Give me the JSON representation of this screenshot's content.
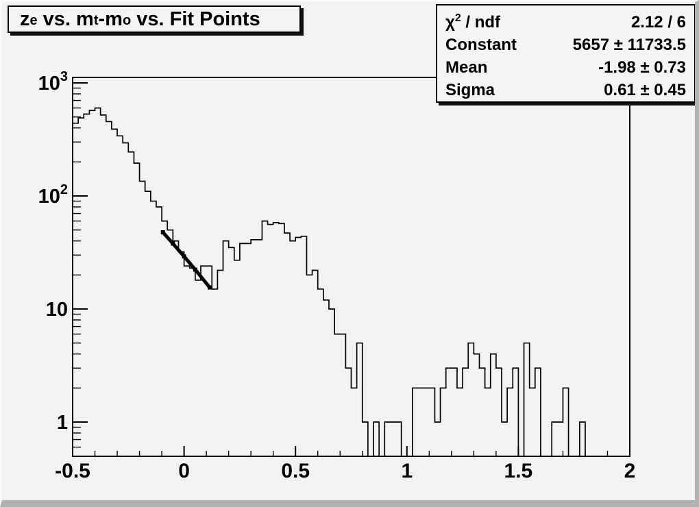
{
  "window": {
    "background": "#f2f2f2",
    "border_light": "#fafafa",
    "border_dark": "#b2b2b2"
  },
  "title_box": {
    "segments": [
      {
        "text": "z",
        "sub": "e"
      },
      {
        "text": " vs. m",
        "sub": "t"
      },
      {
        "text": "-m",
        "sub": "o"
      },
      {
        "text": " vs. Fit Points",
        "sub": ""
      }
    ]
  },
  "stats_box": {
    "rows": [
      {
        "label_base": "χ",
        "label_exp": "2",
        "label_rest": " / ndf",
        "value": "2.12 / 6"
      },
      {
        "label_base": "Constant",
        "label_exp": "",
        "label_rest": "",
        "value": "5657 ± 11733.5"
      },
      {
        "label_base": "Mean",
        "label_exp": "",
        "label_rest": "",
        "value": "-1.98 ± 0.73"
      },
      {
        "label_base": "Sigma",
        "label_exp": "",
        "label_rest": "",
        "value": "0.61 ± 0.45"
      }
    ]
  },
  "chart_data": {
    "type": "bar",
    "subtype": "step-histogram",
    "title": "z_e vs. m_t-m_o vs. Fit Points",
    "xlabel": "",
    "ylabel": "",
    "x_start": -0.5,
    "bin_width": 0.025,
    "n_bins": 100,
    "xlim": [
      -0.5,
      2.0
    ],
    "ylim_log": [
      0.5,
      1120
    ],
    "y_scale": "log",
    "grid": false,
    "line_color": "#000000",
    "counts": [
      440,
      490,
      530,
      570,
      600,
      520,
      455,
      390,
      340,
      295,
      245,
      195,
      135,
      110,
      90,
      80,
      60,
      50,
      40,
      32,
      24,
      23,
      18,
      24,
      24,
      15,
      22,
      40,
      35,
      27,
      38,
      38,
      41,
      41,
      60,
      56,
      58,
      57,
      47,
      40,
      43,
      44,
      20,
      22,
      15,
      12,
      10,
      6,
      6,
      3,
      2,
      5,
      1,
      0,
      1,
      0,
      1,
      1,
      1,
      0,
      0,
      2,
      2,
      2,
      2,
      1,
      2,
      3,
      3,
      2,
      3,
      5,
      4,
      3,
      2,
      4,
      3,
      1,
      2,
      3,
      0,
      5,
      2,
      3,
      0,
      0,
      1,
      1,
      2,
      0,
      0,
      1,
      0,
      0,
      0,
      0,
      0,
      0,
      0,
      0
    ],
    "x_major_ticks": [
      -0.5,
      0,
      0.5,
      1,
      1.5,
      2
    ],
    "x_tick_labels": [
      "-0.5",
      "0",
      "0.5",
      "1",
      "1.5",
      "2"
    ],
    "x_minor_step": 0.1,
    "y_major_ticks": [
      {
        "value": 1,
        "base": "1",
        "exp": ""
      },
      {
        "value": 10,
        "base": "10",
        "exp": ""
      },
      {
        "value": 100,
        "base": "10",
        "exp": "2"
      },
      {
        "value": 1000,
        "base": "10",
        "exp": "3"
      }
    ],
    "fit_line": {
      "description": "gaussian tail fit segment with point markers",
      "points_x": [
        -0.095,
        -0.05,
        0.0,
        0.05,
        0.115
      ],
      "points_y": [
        47.7,
        37.9,
        29.2,
        22.3,
        15.5
      ]
    }
  }
}
